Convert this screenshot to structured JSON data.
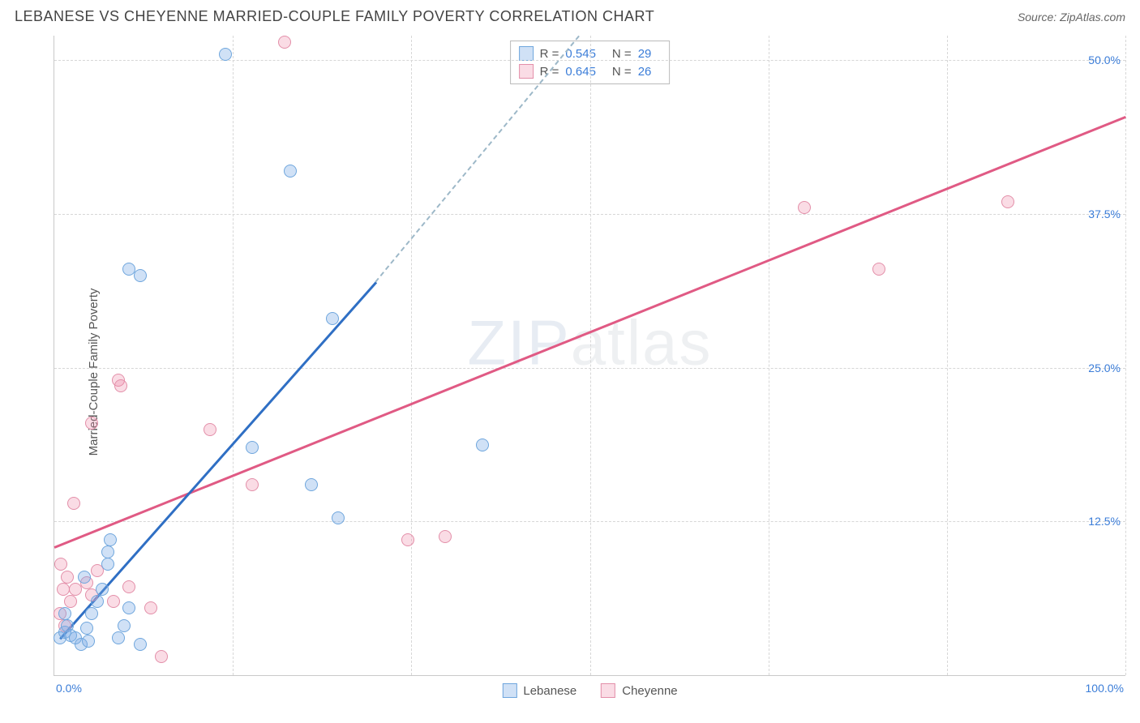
{
  "header": {
    "title": "LEBANESE VS CHEYENNE MARRIED-COUPLE FAMILY POVERTY CORRELATION CHART",
    "source_prefix": "Source: ",
    "source_name": "ZipAtlas.com"
  },
  "ylabel": "Married-Couple Family Poverty",
  "watermark": {
    "bold": "ZIP",
    "thin": "atlas"
  },
  "axes": {
    "xlim": [
      0,
      100
    ],
    "ylim": [
      0,
      52
    ],
    "x_ticks": [
      0,
      16.67,
      33.33,
      50,
      66.67,
      83.33,
      100
    ],
    "x_tick_labels_shown": {
      "0": "0.0%",
      "100": "100.0%"
    },
    "y_gridlines": [
      12.5,
      25,
      37.5,
      50
    ],
    "y_tick_labels": {
      "12.5": "12.5%",
      "25": "25.0%",
      "37.5": "37.5%",
      "50": "50.0%"
    },
    "grid_color": "#d7d7d7",
    "axis_color": "#c9c9c9",
    "tick_label_color": "#3b7dd8",
    "tick_fontsize": 14
  },
  "series": {
    "lebanese": {
      "label": "Lebanese",
      "color_fill": "rgba(120,170,230,0.35)",
      "color_stroke": "#6fa6dd",
      "marker_radius": 8,
      "R": "0.545",
      "N": "29",
      "trend": {
        "x1": 0.5,
        "y1": 3,
        "x2": 30,
        "y2": 32,
        "color": "#2f6fc4"
      },
      "trend_ext": {
        "x1": 30,
        "y1": 32,
        "x2": 49,
        "y2": 52,
        "color": "#9db8c8"
      },
      "points": [
        [
          0.5,
          3
        ],
        [
          1,
          3.5
        ],
        [
          1.2,
          4
        ],
        [
          1,
          5
        ],
        [
          1.5,
          3.2
        ],
        [
          2,
          3
        ],
        [
          2.5,
          2.5
        ],
        [
          3,
          3.8
        ],
        [
          3.2,
          2.8
        ],
        [
          3.5,
          5
        ],
        [
          4,
          6
        ],
        [
          4.5,
          7
        ],
        [
          5,
          10
        ],
        [
          5.2,
          11
        ],
        [
          5,
          9
        ],
        [
          6,
          3
        ],
        [
          6.5,
          4
        ],
        [
          7,
          5.5
        ],
        [
          8,
          2.5
        ],
        [
          2.8,
          8
        ],
        [
          7,
          33
        ],
        [
          8,
          32.5
        ],
        [
          16,
          50.5
        ],
        [
          22,
          41
        ],
        [
          26,
          29
        ],
        [
          18.5,
          18.5
        ],
        [
          26.5,
          12.8
        ],
        [
          24,
          15.5
        ],
        [
          40,
          18.7
        ]
      ]
    },
    "cheyenne": {
      "label": "Cheyenne",
      "color_fill": "rgba(240,140,170,0.30)",
      "color_stroke": "#e38fa9",
      "marker_radius": 8,
      "R": "0.645",
      "N": "26",
      "trend": {
        "x1": 0,
        "y1": 10.5,
        "x2": 100,
        "y2": 45.5,
        "color": "#e05a84"
      },
      "points": [
        [
          0.5,
          5
        ],
        [
          1,
          4
        ],
        [
          0.8,
          7
        ],
        [
          1.2,
          8
        ],
        [
          0.6,
          9
        ],
        [
          1.5,
          6
        ],
        [
          2,
          7
        ],
        [
          1.8,
          14
        ],
        [
          3,
          7.5
        ],
        [
          3.5,
          6.5
        ],
        [
          4,
          8.5
        ],
        [
          5.5,
          6
        ],
        [
          7,
          7.2
        ],
        [
          9,
          5.5
        ],
        [
          10,
          1.5
        ],
        [
          3.5,
          20.5
        ],
        [
          6,
          24
        ],
        [
          6.2,
          23.5
        ],
        [
          14.5,
          20
        ],
        [
          18.5,
          15.5
        ],
        [
          21.5,
          51.5
        ],
        [
          33,
          11
        ],
        [
          36.5,
          11.3
        ],
        [
          70,
          38
        ],
        [
          77,
          33
        ],
        [
          89,
          38.5
        ]
      ]
    }
  },
  "stat_box": {
    "r_label": "R =",
    "n_label": "N ="
  },
  "legend": {
    "items": [
      "lebanese",
      "cheyenne"
    ]
  },
  "background_color": "#ffffff"
}
